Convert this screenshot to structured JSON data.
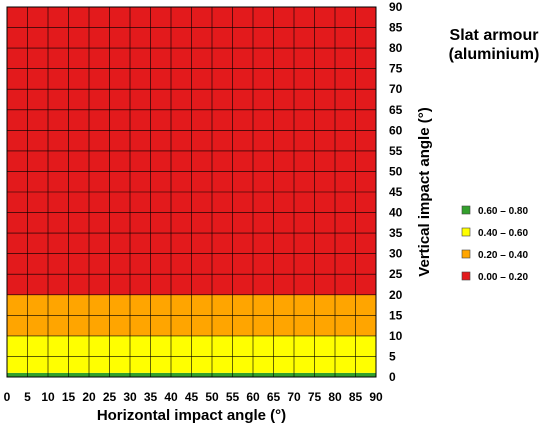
{
  "chart_data": {
    "type": "heatmap",
    "title_lines": [
      "Slat armour",
      "(aluminium)"
    ],
    "xlabel": "Horizontal impact angle (°)",
    "ylabel": "Vertical impact angle (°)",
    "xlim": [
      0,
      90
    ],
    "ylim": [
      0,
      90
    ],
    "x_ticks": [
      0,
      5,
      10,
      15,
      20,
      25,
      30,
      35,
      40,
      45,
      50,
      55,
      60,
      65,
      70,
      75,
      80,
      85,
      90
    ],
    "y_ticks": [
      0,
      5,
      10,
      15,
      20,
      25,
      30,
      35,
      40,
      45,
      50,
      55,
      60,
      65,
      70,
      75,
      80,
      85,
      90
    ],
    "grid": true,
    "legend_position": "right",
    "legend": [
      {
        "label": "0.60 – 0.80",
        "color": "#33a02c"
      },
      {
        "label": "0.40 – 0.60",
        "color": "#ffff00"
      },
      {
        "label": "0.20 – 0.40",
        "color": "#ffa500"
      },
      {
        "label": "0.00 – 0.20",
        "color": "#e31a1c"
      }
    ],
    "bands": [
      {
        "y_from": 0,
        "y_to": 1,
        "range": "0.60 – 0.80",
        "color": "#33a02c"
      },
      {
        "y_from": 1,
        "y_to": 10,
        "range": "0.40 – 0.60",
        "color": "#ffff00"
      },
      {
        "y_from": 10,
        "y_to": 20,
        "range": "0.20 – 0.40",
        "color": "#ffa500"
      },
      {
        "y_from": 20,
        "y_to": 90,
        "range": "0.00 – 0.20",
        "color": "#e31a1c"
      }
    ]
  }
}
